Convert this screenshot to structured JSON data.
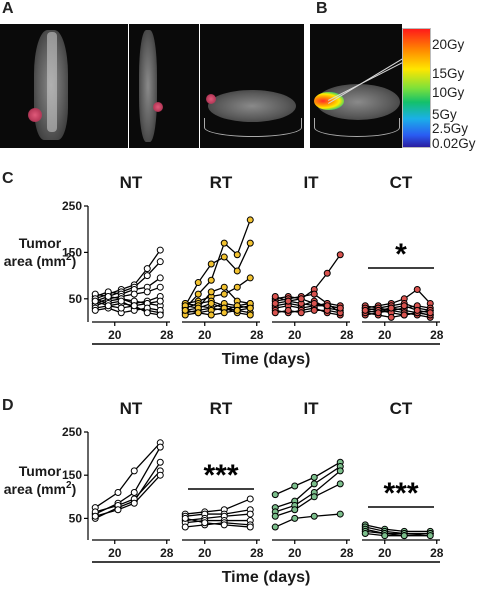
{
  "panels": {
    "A": {
      "letter": "A"
    },
    "B": {
      "letter": "B"
    },
    "C": {
      "letter": "C"
    },
    "D": {
      "letter": "D"
    }
  },
  "colorbar": {
    "labels": [
      "20Gy",
      "15Gy",
      "10Gy",
      "5Gy",
      "2.5Gy",
      "0.02Gy"
    ]
  },
  "chart_data": [
    {
      "panel": "C",
      "type": "line",
      "ylabel_line1": "Tumor",
      "ylabel_line2": "area (mm",
      "ylabel_sup": "2",
      "ylabel_close": ")",
      "xlabel": "Time (days)",
      "ylim": [
        0,
        250
      ],
      "yticks": [
        50,
        150,
        250
      ],
      "xlim": [
        16.5,
        28.5
      ],
      "xticks": [
        20,
        28
      ],
      "groups": [
        {
          "name": "NT",
          "color": "#ffffff",
          "significance": "",
          "x": [
            17,
            19,
            21,
            23,
            25,
            27
          ],
          "series": [
            [
              50,
              60,
              70,
              80,
              115,
              155
            ],
            [
              45,
              55,
              65,
              75,
              100,
              130
            ],
            [
              55,
              65,
              60,
              70,
              75,
              95
            ],
            [
              40,
              50,
              55,
              60,
              65,
              75
            ],
            [
              35,
              45,
              50,
              40,
              45,
              55
            ],
            [
              60,
              55,
              50,
              45,
              40,
              35
            ],
            [
              30,
              35,
              40,
              35,
              40,
              45
            ],
            [
              50,
              40,
              45,
              30,
              25,
              20
            ],
            [
              25,
              30,
              20,
              25,
              30,
              25
            ],
            [
              45,
              35,
              30,
              35,
              20,
              15
            ]
          ]
        },
        {
          "name": "RT",
          "color": "#f2c230",
          "significance": "",
          "x": [
            17,
            19,
            21,
            23,
            25,
            27
          ],
          "series": [
            [
              35,
              85,
              125,
              140,
              110,
              170
            ],
            [
              30,
              60,
              90,
              170,
              145,
              220
            ],
            [
              40,
              45,
              55,
              60,
              75,
              95
            ],
            [
              25,
              30,
              65,
              75,
              45,
              40
            ],
            [
              30,
              40,
              45,
              35,
              30,
              35
            ],
            [
              20,
              25,
              30,
              40,
              35,
              30
            ],
            [
              40,
              35,
              30,
              25,
              35,
              40
            ],
            [
              15,
              20,
              25,
              30,
              25,
              20
            ],
            [
              35,
              30,
              40,
              30,
              20,
              15
            ],
            [
              25,
              20,
              15,
              20,
              25,
              30
            ]
          ]
        },
        {
          "name": "IT",
          "color": "#d9534f",
          "significance": "",
          "x": [
            17,
            19,
            21,
            23,
            25,
            27
          ],
          "series": [
            [
              50,
              55,
              50,
              70,
              105,
              145
            ],
            [
              45,
              50,
              55,
              60,
              40,
              20
            ],
            [
              35,
              40,
              35,
              45,
              30,
              25
            ],
            [
              30,
              35,
              30,
              35,
              35,
              30
            ],
            [
              25,
              20,
              25,
              30,
              20,
              15
            ],
            [
              40,
              45,
              40,
              35,
              40,
              35
            ],
            [
              20,
              25,
              20,
              25,
              25,
              20
            ],
            [
              55,
              45,
              50,
              40,
              35,
              30
            ]
          ]
        },
        {
          "name": "CT",
          "color": "#d9534f",
          "significance": "*",
          "x": [
            17,
            19,
            21,
            23,
            25,
            27
          ],
          "series": [
            [
              30,
              35,
              40,
              50,
              70,
              40
            ],
            [
              25,
              30,
              35,
              40,
              30,
              25
            ],
            [
              20,
              25,
              30,
              25,
              20,
              15
            ],
            [
              35,
              30,
              25,
              30,
              35,
              30
            ],
            [
              15,
              20,
              25,
              20,
              15,
              10
            ],
            [
              30,
              25,
              20,
              15,
              20,
              25
            ],
            [
              20,
              15,
              10,
              15,
              20,
              15
            ],
            [
              25,
              20,
              30,
              35,
              25,
              20
            ]
          ]
        }
      ]
    },
    {
      "panel": "D",
      "type": "line",
      "ylabel_line1": "Tumor",
      "ylabel_line2": "area (mm",
      "ylabel_sup": "2",
      "ylabel_close": ")",
      "xlabel": "Time (days)",
      "ylim": [
        0,
        250
      ],
      "yticks": [
        50,
        150,
        250
      ],
      "xlim": [
        16.5,
        28.5
      ],
      "xticks": [
        20,
        28
      ],
      "groups": [
        {
          "name": "NT",
          "color": "#ffffff",
          "significance": "",
          "x": [
            17,
            20.5,
            23,
            27
          ],
          "series": [
            [
              75,
              110,
              160,
              225
            ],
            [
              60,
              85,
              110,
              215
            ],
            [
              50,
              75,
              90,
              180
            ],
            [
              65,
              80,
              95,
              160
            ],
            [
              55,
              70,
              85,
              150
            ]
          ]
        },
        {
          "name": "RT",
          "color": "#ffffff",
          "significance": "***",
          "x": [
            17,
            20,
            23,
            27
          ],
          "series": [
            [
              60,
              65,
              70,
              95
            ],
            [
              55,
              60,
              60,
              70
            ],
            [
              45,
              50,
              55,
              60
            ],
            [
              40,
              45,
              45,
              45
            ],
            [
              30,
              35,
              40,
              35
            ],
            [
              50,
              40,
              35,
              30
            ]
          ]
        },
        {
          "name": "IT",
          "color": "#7cbf8c",
          "significance": "",
          "x": [
            17,
            20,
            23,
            27
          ],
          "series": [
            [
              105,
              125,
              145,
              180
            ],
            [
              75,
              90,
              130,
              170
            ],
            [
              65,
              80,
              110,
              160
            ],
            [
              55,
              70,
              100,
              130
            ],
            [
              30,
              50,
              55,
              60
            ]
          ]
        },
        {
          "name": "CT",
          "color": "#7cbf8c",
          "significance": "***",
          "x": [
            17,
            20,
            23,
            27
          ],
          "series": [
            [
              35,
              25,
              20,
              20
            ],
            [
              30,
              20,
              15,
              15
            ],
            [
              25,
              15,
              15,
              15
            ],
            [
              20,
              15,
              10,
              15
            ],
            [
              15,
              10,
              10,
              10
            ]
          ]
        }
      ]
    }
  ]
}
